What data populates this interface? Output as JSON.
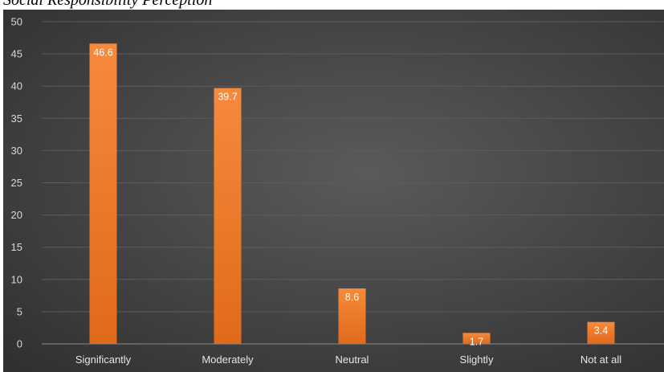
{
  "caption": "Social Responsibility Perception",
  "chart_data": {
    "type": "bar",
    "title": "",
    "xlabel": "",
    "ylabel": "",
    "categories": [
      "Significantly",
      "Moderately",
      "Neutral",
      "Slightly",
      "Not at all"
    ],
    "values": [
      46.6,
      39.7,
      8.6,
      1.7,
      3.4
    ],
    "data_labels": [
      "46.6",
      "39.7",
      "8.6",
      "1.7",
      "3.4"
    ],
    "ylim": [
      0,
      50
    ],
    "yticks": [
      0,
      5,
      10,
      15,
      20,
      25,
      30,
      35,
      40,
      45,
      50
    ],
    "grid": true,
    "legend": "none",
    "bar_color": "#f07b28",
    "background_color": "#404040"
  }
}
